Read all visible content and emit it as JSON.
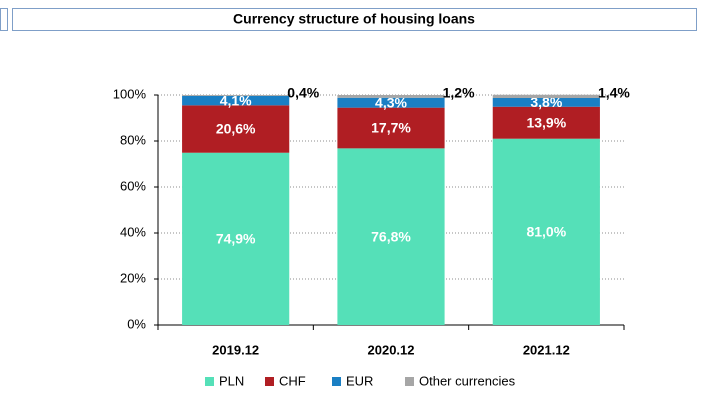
{
  "chart_data": {
    "type": "stacked_bar",
    "title": "Currency structure of housing loans",
    "categories": [
      "2019.12",
      "2020.12",
      "2021.12"
    ],
    "series": [
      {
        "name": "PLN",
        "color": "#55e0b8",
        "values": [
          74.9,
          76.8,
          81.0
        ],
        "value_labels": [
          "74,9%",
          "76,8%",
          "81,0%"
        ]
      },
      {
        "name": "CHF",
        "color": "#b01e23",
        "values": [
          20.6,
          17.7,
          13.9
        ],
        "value_labels": [
          "20,6%",
          "17,7%",
          "13,9%"
        ]
      },
      {
        "name": "EUR",
        "color": "#1a7fc4",
        "values": [
          4.1,
          4.3,
          3.8
        ],
        "value_labels": [
          "4,1%",
          "4,3%",
          "3,8%"
        ]
      },
      {
        "name": "Other currencies",
        "color": "#a6a6a6",
        "values": [
          0.4,
          1.2,
          1.4
        ],
        "value_labels": [
          "0,4%",
          "1,2%",
          "1,4%"
        ]
      }
    ],
    "ylim": [
      0,
      100
    ],
    "yticks": [
      {
        "value": 0,
        "label": "0%"
      },
      {
        "value": 20,
        "label": "20%"
      },
      {
        "value": 40,
        "label": "40%"
      },
      {
        "value": 60,
        "label": "60%"
      },
      {
        "value": 80,
        "label": "80%"
      },
      {
        "value": 100,
        "label": "100%"
      }
    ],
    "grid": true,
    "legend": "bottom"
  }
}
